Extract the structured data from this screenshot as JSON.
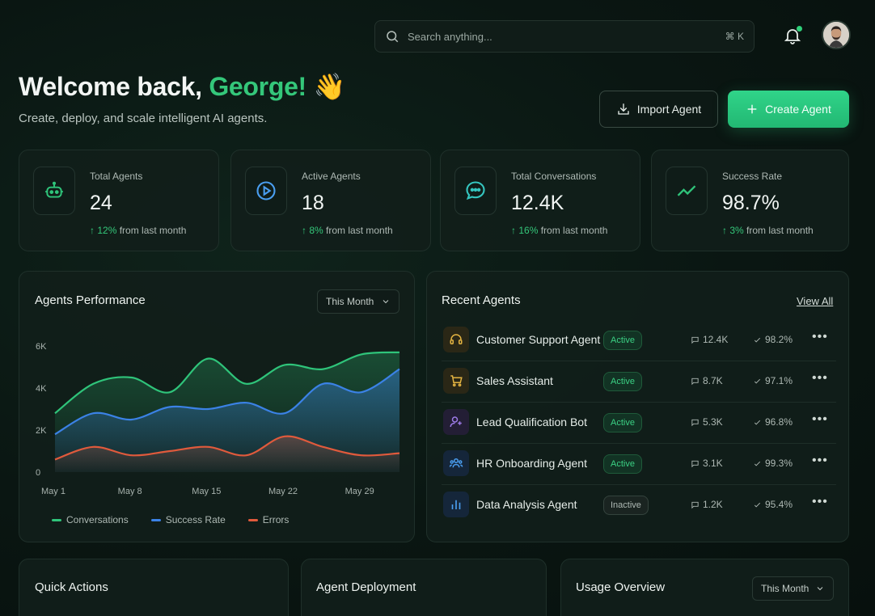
{
  "header": {
    "search_placeholder": "Search anything...",
    "search_shortcut": "⌘ K"
  },
  "welcome": {
    "greeting": "Welcome back, ",
    "name": "George!",
    "emoji": "👋",
    "subtitle": "Create, deploy, and scale intelligent AI agents."
  },
  "actions": {
    "import_label": "Import Agent",
    "create_label": "Create Agent"
  },
  "stats": [
    {
      "label": "Total Agents",
      "value": "24",
      "delta": "12%",
      "suffix": "from last month",
      "icon": "robot-icon"
    },
    {
      "label": "Active Agents",
      "value": "18",
      "delta": "8%",
      "suffix": "from last month",
      "icon": "play-icon"
    },
    {
      "label": "Total Conversations",
      "value": "12.4K",
      "delta": "16%",
      "suffix": "from last month",
      "icon": "chat-icon"
    },
    {
      "label": "Success Rate",
      "value": "98.7%",
      "delta": "3%",
      "suffix": "from last month",
      "icon": "trend-icon"
    }
  ],
  "performance": {
    "title": "Agents Performance",
    "range": "This Month"
  },
  "chart_data": {
    "type": "area",
    "x": [
      "May 1",
      "May 4",
      "May 8",
      "May 11",
      "May 15",
      "May 18",
      "May 22",
      "May 25",
      "May 29",
      "May 31"
    ],
    "xticks": [
      "May 1",
      "May 8",
      "May 15",
      "May 22",
      "May 29"
    ],
    "yticks": [
      "0",
      "2K",
      "4K",
      "6K"
    ],
    "ylim": [
      0,
      6000
    ],
    "series": [
      {
        "name": "Conversations",
        "color": "#2fc47a",
        "values": [
          2800,
          4200,
          4500,
          3800,
          5400,
          4200,
          5100,
          4900,
          5600,
          5700
        ]
      },
      {
        "name": "Success Rate",
        "color": "#3b82e6",
        "values": [
          1800,
          2800,
          2500,
          3100,
          3000,
          3300,
          2800,
          4200,
          3800,
          4900
        ]
      },
      {
        "name": "Errors",
        "color": "#e05a3c",
        "values": [
          600,
          1200,
          800,
          1000,
          1200,
          800,
          1700,
          1200,
          800,
          900
        ]
      }
    ],
    "legend": "bottom",
    "grid": false
  },
  "recent": {
    "title": "Recent Agents",
    "view_all": "View All",
    "agents": [
      {
        "name": "Customer Support Agent",
        "status": "Active",
        "metric1": "12.4K",
        "metric2": "98.2%",
        "icon": "headset-icon",
        "icon_color": "#e3b341"
      },
      {
        "name": "Sales Assistant",
        "status": "Active",
        "metric1": "8.7K",
        "metric2": "97.1%",
        "icon": "cart-icon",
        "icon_color": "#e3b341"
      },
      {
        "name": "Lead Qualification Bot",
        "status": "Active",
        "metric1": "5.3K",
        "metric2": "96.8%",
        "icon": "user-plus-icon",
        "icon_color": "#9d7be8"
      },
      {
        "name": "HR Onboarding Agent",
        "status": "Active",
        "metric1": "3.1K",
        "metric2": "99.3%",
        "icon": "team-icon",
        "icon_color": "#4a9ef0"
      },
      {
        "name": "Data Analysis Agent",
        "status": "Inactive",
        "metric1": "1.2K",
        "metric2": "95.4%",
        "icon": "bar-chart-icon",
        "icon_color": "#4a9ef0"
      }
    ]
  },
  "bottom": {
    "quick_actions": "Quick Actions",
    "deployment": "Agent Deployment",
    "usage": "Usage Overview",
    "usage_range": "This Month"
  }
}
